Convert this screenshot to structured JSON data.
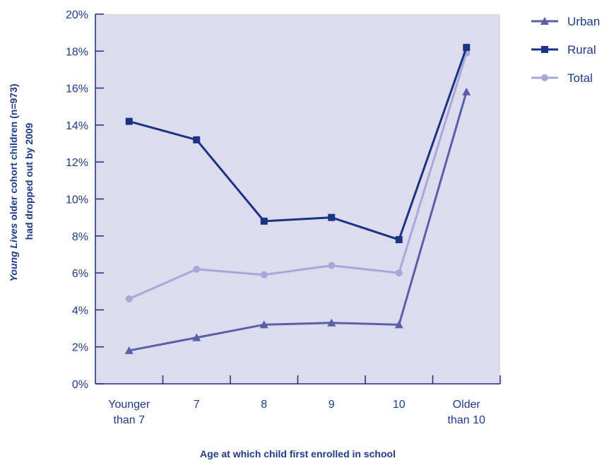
{
  "chart_data": {
    "type": "line",
    "title": "",
    "xlabel": "Age at which child first enrolled in school",
    "ylabel_line1_italic": "Young Lives",
    "ylabel_line1_rest": " older cohort children (n=973)",
    "ylabel_line2": "had dropped out by 2009",
    "categories": [
      [
        "Younger",
        "than 7"
      ],
      [
        "7"
      ],
      [
        "8"
      ],
      [
        "9"
      ],
      [
        "10"
      ],
      [
        "Older",
        "than 10"
      ]
    ],
    "ylim": [
      0,
      20
    ],
    "yticks": [
      "0%",
      "2%",
      "4%",
      "6%",
      "8%",
      "10%",
      "12%",
      "14%",
      "16%",
      "18%",
      "20%"
    ],
    "legend_position": "top-right",
    "plot_background": "#dcdcee",
    "series": [
      {
        "name": "Urban",
        "values": [
          1.8,
          2.5,
          3.2,
          3.3,
          3.2,
          15.8
        ],
        "color": "#5a5fa8",
        "marker": "triangle"
      },
      {
        "name": "Rural",
        "values": [
          14.2,
          13.2,
          8.8,
          9.0,
          7.8,
          18.2
        ],
        "color": "#1c3383",
        "marker": "square"
      },
      {
        "name": "Total",
        "values": [
          4.6,
          6.2,
          5.9,
          6.4,
          6.0,
          17.9
        ],
        "color": "#a6a8d8",
        "marker": "circle"
      }
    ]
  }
}
